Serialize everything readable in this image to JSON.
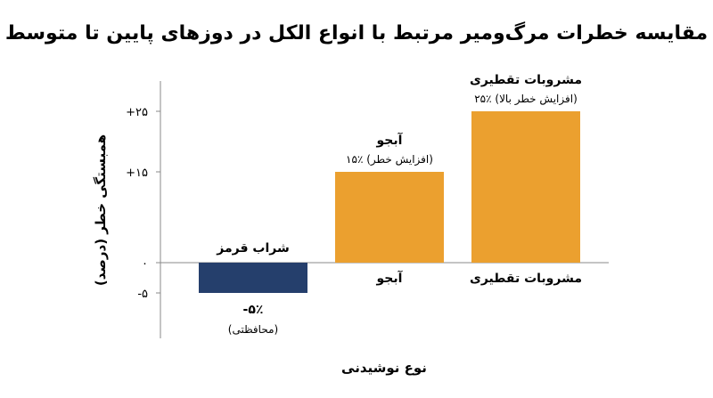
{
  "chart_data": {
    "type": "bar",
    "title": "مقایسه خطرات مرگ‌ومیر مرتبط با انواع الکل در دوزهای پایین تا متوسط",
    "xlabel": "نوع نوشیدنی",
    "ylabel": "همبستگی خطر (درصد)",
    "ylim": [
      -10,
      30
    ],
    "yticks": [
      {
        "value": 25,
        "label": "+۲۵"
      },
      {
        "value": 15,
        "label": "+۱۵"
      },
      {
        "value": 0,
        "label": "۰"
      },
      {
        "value": -5,
        "label": "-۵"
      }
    ],
    "grid": false,
    "categories": [
      "شراب قرمز",
      "آبجو",
      "مشروبات تقطیری"
    ],
    "values": [
      -5,
      15,
      25
    ],
    "colors": [
      "#253f6c",
      "#eba02f",
      "#eba02f"
    ],
    "annotations": [
      {
        "line1": "-۵٪",
        "line2": "(محافظتی)"
      },
      {
        "line1": "آبجو",
        "line2": "۱۵٪ (افزایش خطر)"
      },
      {
        "line1": "مشروبات تقطیری",
        "line2": "۲۵٪ (افزایش خطر بالا)"
      }
    ]
  }
}
